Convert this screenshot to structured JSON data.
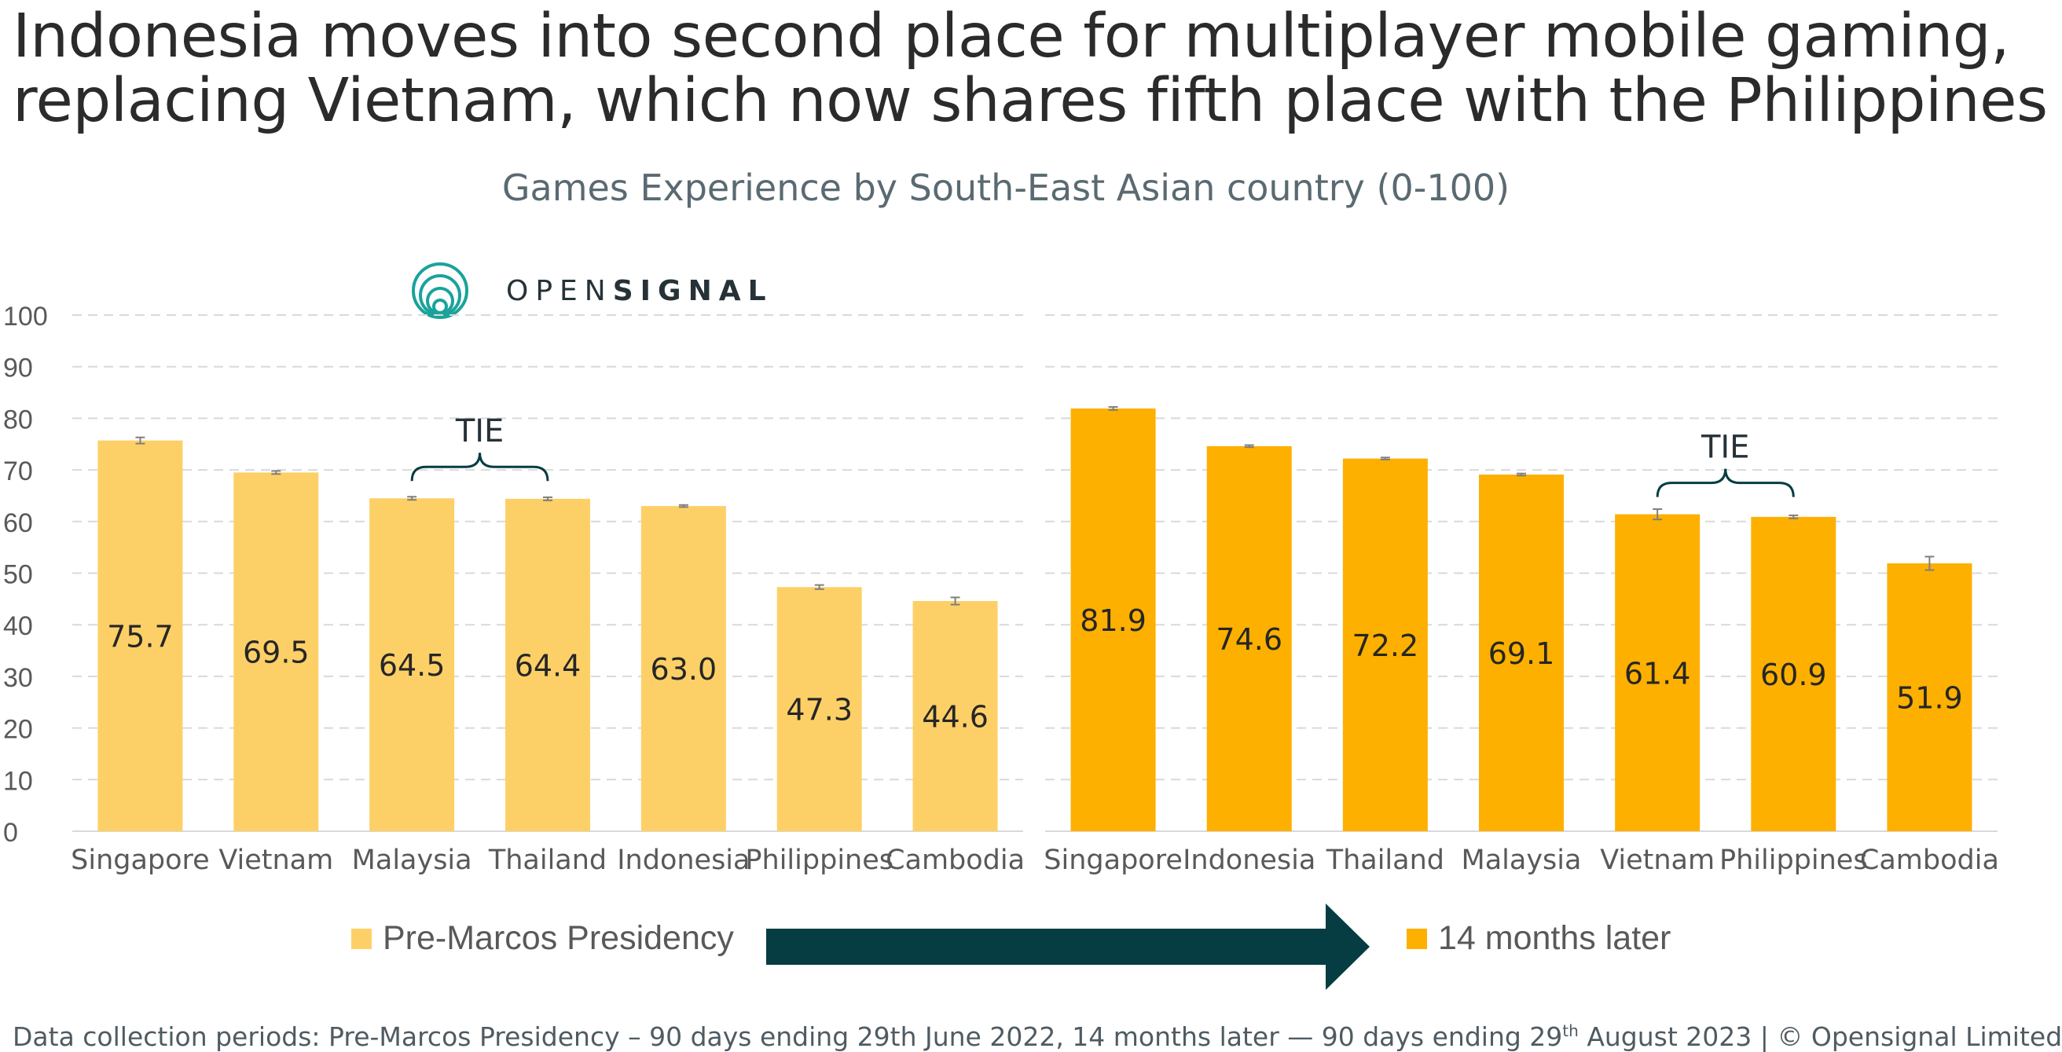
{
  "headline": {
    "line1": "Indonesia moves into second place for multiplayer mobile gaming,",
    "line2": "replacing Vietnam, which now shares fifth place with the Philippines"
  },
  "logo": {
    "part1": "OPEN",
    "part2": "SIGNAL",
    "color": "#1aa39a"
  },
  "chart_data": {
    "type": "bar",
    "title": "Games Experience by South-East Asian country (0-100)",
    "ylim": [
      0,
      100
    ],
    "yticks": [
      0,
      10,
      20,
      30,
      40,
      50,
      60,
      70,
      80,
      90,
      100
    ],
    "grid": true,
    "legend_position": "bottom",
    "panels": [
      {
        "series_name": "Pre-Marcos Presidency",
        "color": "#fdd067",
        "categories": [
          "Singapore",
          "Vietnam",
          "Malaysia",
          "Thailand",
          "Indonesia",
          "Philippines",
          "Cambodia"
        ],
        "values": [
          75.7,
          69.5,
          64.5,
          64.4,
          63.0,
          47.3,
          44.6
        ],
        "labels": [
          "75.7",
          "69.5",
          "64.5",
          "64.4",
          "63.0",
          "47.3",
          "44.6"
        ],
        "error_half": [
          0.6,
          0.3,
          0.3,
          0.3,
          0.2,
          0.4,
          0.7
        ],
        "annotation": {
          "text": "TIE",
          "from_index": 2,
          "to_index": 3
        }
      },
      {
        "series_name": "14 months later",
        "color": "#fdb000",
        "categories": [
          "Singapore",
          "Indonesia",
          "Thailand",
          "Malaysia",
          "Vietnam",
          "Philippines",
          "Cambodia"
        ],
        "values": [
          81.9,
          74.6,
          72.2,
          69.1,
          61.4,
          60.9,
          51.9
        ],
        "labels": [
          "81.9",
          "74.6",
          "72.2",
          "69.1",
          "61.4",
          "60.9",
          "51.9"
        ],
        "error_half": [
          0.3,
          0.2,
          0.2,
          0.2,
          1.0,
          0.3,
          1.3
        ],
        "annotation": {
          "text": "TIE",
          "from_index": 4,
          "to_index": 5
        }
      }
    ]
  },
  "legend": {
    "before": "Pre-Marcos Presidency",
    "after": "14 months later",
    "arrow_color": "#063d42"
  },
  "footnote": {
    "part1": "Data collection periods: Pre-Marcos Presidency – 90 days ending 29th June 2022, 14 months later — 90 days ending 29",
    "sup": "th",
    "part2": " August 2023 | © Opensignal Limited"
  }
}
